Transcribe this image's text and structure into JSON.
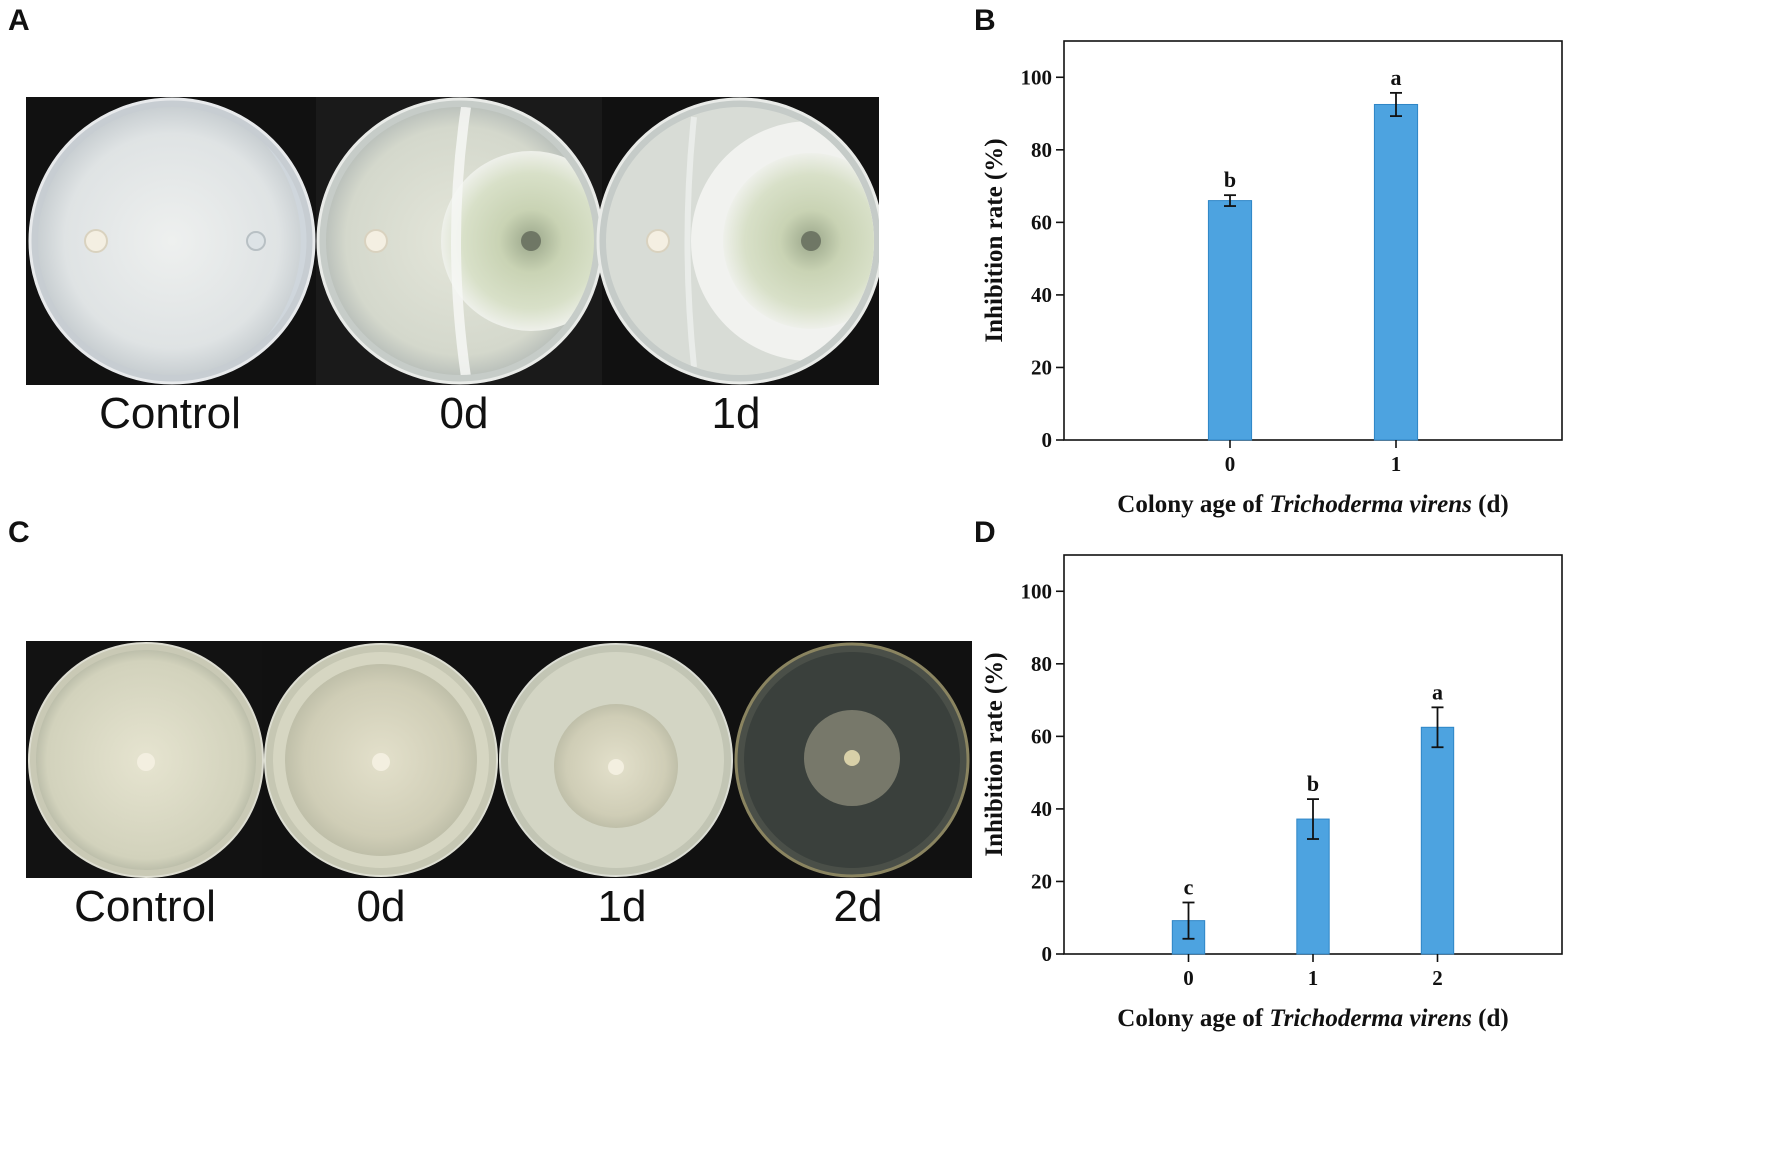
{
  "panels": {
    "a": {
      "letter": "A",
      "captions": [
        "Control",
        "0d",
        "1d"
      ]
    },
    "b": {
      "letter": "B"
    },
    "c": {
      "letter": "C",
      "captions": [
        "Control",
        "0d",
        "1d",
        "2d"
      ]
    },
    "d": {
      "letter": "D"
    }
  },
  "colors": {
    "bar": "#4da3e0",
    "bar_edge": "#2f86c6",
    "photo_bg": "#111111"
  },
  "chart_data": [
    {
      "id": "B",
      "type": "bar",
      "categories": [
        "0",
        "1"
      ],
      "values": [
        66,
        92.5
      ],
      "errors": [
        1.5,
        3.2
      ],
      "significance": [
        "b",
        "a"
      ],
      "xlabel_prefix": "Colony age of ",
      "xlabel_italic": "Trichoderma virens",
      "xlabel_suffix": " (d)",
      "ylabel": "Inhibition rate (%)",
      "ylim": [
        0,
        110
      ],
      "yticks": [
        "0",
        "20",
        "40",
        "60",
        "80",
        "100"
      ],
      "ytick_values": [
        0,
        20,
        40,
        60,
        80,
        100
      ]
    },
    {
      "id": "D",
      "type": "bar",
      "categories": [
        "0",
        "1",
        "2"
      ],
      "values": [
        9.2,
        37.2,
        62.5
      ],
      "errors": [
        5,
        5.5,
        5.5
      ],
      "significance": [
        "c",
        "b",
        "a"
      ],
      "xlabel_prefix": "Colony age of ",
      "xlabel_italic": "Trichoderma virens",
      "xlabel_suffix": " (d)",
      "ylabel": "Inhibition rate (%)",
      "ylim": [
        0,
        110
      ],
      "yticks": [
        "0",
        "20",
        "40",
        "60",
        "80",
        "100"
      ],
      "ytick_values": [
        0,
        20,
        40,
        60,
        80,
        100
      ]
    }
  ]
}
